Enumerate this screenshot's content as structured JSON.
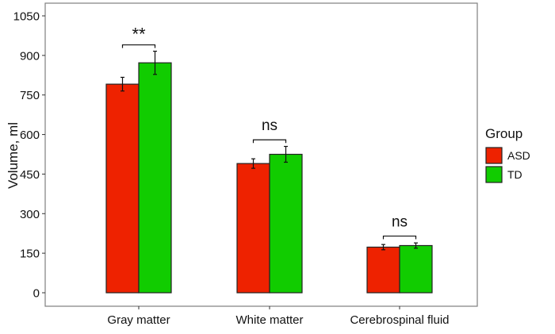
{
  "chart_data": {
    "type": "bar",
    "title": "",
    "xlabel": "",
    "ylabel": "Volume, ml",
    "ylim": [
      0,
      1050
    ],
    "yticks": [
      "0",
      "150",
      "300",
      "450",
      "600",
      "750",
      "900",
      "1050"
    ],
    "grid": false,
    "categories": [
      "Gray matter",
      "White matter",
      "Cerebrospinal fluid"
    ],
    "series": [
      {
        "name": "ASD",
        "color": "#ee2200",
        "values": [
          791,
          490,
          173
        ],
        "errors": [
          26,
          18,
          10
        ]
      },
      {
        "name": "TD",
        "color": "#11cc00",
        "values": [
          872,
          525,
          179
        ],
        "errors": [
          44,
          30,
          10
        ]
      }
    ],
    "significance": [
      {
        "label": "**",
        "bracket_y": 940
      },
      {
        "label": "ns",
        "bracket_y": 580
      },
      {
        "label": "ns",
        "bracket_y": 215
      }
    ],
    "legend": {
      "title": "Group",
      "placement": "right"
    }
  }
}
